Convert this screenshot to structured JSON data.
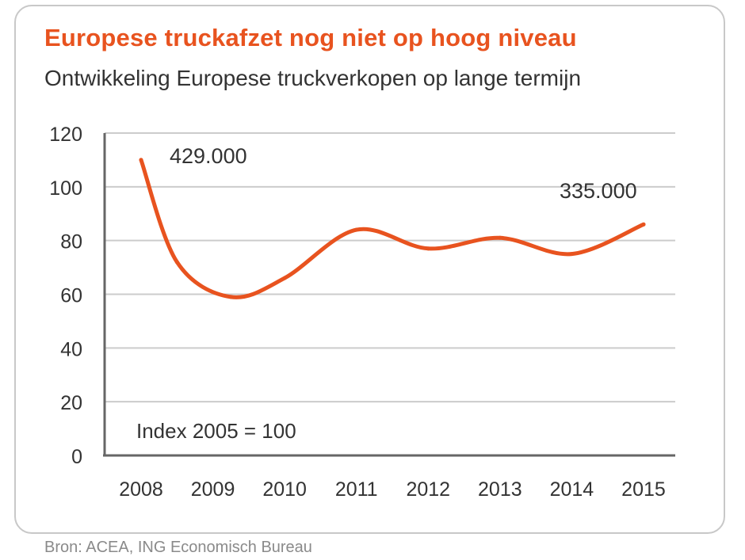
{
  "header": {
    "title": "Europese truckafzet nog niet op hoog niveau",
    "subtitle": "Ontwikkeling Europese truckverkopen op lange termijn"
  },
  "footer": {
    "source": "Bron: ACEA, ING Economisch Bureau"
  },
  "colors": {
    "title": "#e8531f",
    "line": "#e8531f",
    "grid": "#cccccc",
    "axis": "#666666",
    "text": "#333333"
  },
  "chart_data": {
    "type": "line",
    "title": "Europese truckafzet nog niet op hoog niveau",
    "subtitle": "Ontwikkeling Europese truckverkopen op lange termijn",
    "xlabel": "",
    "ylabel": "",
    "categories": [
      "2008",
      "2009",
      "2010",
      "2011",
      "2012",
      "2013",
      "2014",
      "2015"
    ],
    "series": [
      {
        "x": [
          2008.0,
          2008.5,
          2009.25,
          2010.0,
          2011.0,
          2012.0,
          2013.0,
          2014.0,
          2015.0
        ],
        "values": [
          110,
          72,
          59,
          66,
          84,
          77,
          81,
          75,
          86
        ]
      }
    ],
    "ylim": [
      0,
      120
    ],
    "yticks": [
      0,
      20,
      40,
      60,
      80,
      100,
      120
    ],
    "grid": true,
    "annotations": [
      {
        "text": "429.000",
        "x": 2008,
        "y": 110
      },
      {
        "text": "335.000",
        "x": 2015,
        "y": 86
      },
      {
        "text": "Index 2005 = 100"
      }
    ]
  }
}
